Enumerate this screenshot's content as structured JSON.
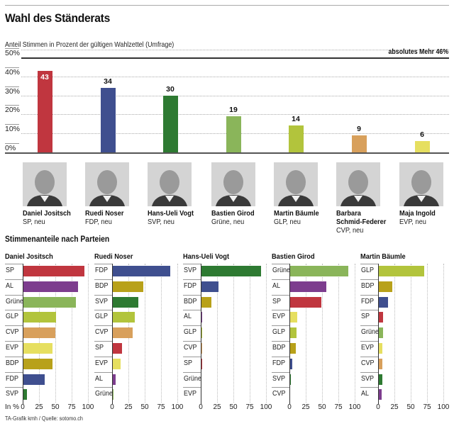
{
  "header": {
    "title": "Wahl des Ständerats",
    "subtitle": "Anteil Stimmen in Prozent der gültigen Wahlzettel (Umfrage)"
  },
  "section_title": "Stimmenanteile nach Parteien",
  "unit_label": "In %",
  "source": "TA-Grafik kmh / Quelle: sotomo.ch",
  "party_colors": {
    "SP": "#c0363f",
    "FDP": "#3f4f8f",
    "SVP": "#2e7a32",
    "Grüne": "#8ab55a",
    "GLP": "#b2c43c",
    "CVP": "#d8a05c",
    "EVP": "#e6df60",
    "BDP": "#b8a11a",
    "AL": "#7d3d8e"
  },
  "candidates": [
    {
      "name": "Daniel Jositsch",
      "party_line": "SP, neu",
      "party": "SP",
      "photo": "portrait-daniel-jositsch"
    },
    {
      "name": "Ruedi Noser",
      "party_line": "FDP, neu",
      "party": "FDP",
      "photo": "portrait-ruedi-noser"
    },
    {
      "name": "Hans-Ueli Vogt",
      "party_line": "SVP, neu",
      "party": "SVP",
      "photo": "portrait-hans-ueli-vogt"
    },
    {
      "name": "Bastien Girod",
      "party_line": "Grüne, neu",
      "party": "Grüne",
      "photo": "portrait-bastien-girod"
    },
    {
      "name": "Martin Bäumle",
      "party_line": "GLP, neu",
      "party": "GLP",
      "photo": "portrait-martin-baeumle"
    },
    {
      "name": "Barbara Schmid-Federer",
      "name_lines": [
        "Barbara",
        "Schmid-Federer"
      ],
      "party_line": "CVP, neu",
      "party": "CVP",
      "photo": "portrait-barbara-schmid-federer"
    },
    {
      "name": "Maja Ingold",
      "party_line": "EVP, neu",
      "party": "EVP",
      "photo": "portrait-maja-ingold"
    }
  ],
  "chart_data": [
    {
      "type": "bar",
      "title": "Wahl des Ständerats",
      "subtitle": "Anteil Stimmen in Prozent der gültigen Wahlzettel (Umfrage)",
      "categories": [
        "Daniel Jositsch",
        "Ruedi Noser",
        "Hans-Ueli Vogt",
        "Bastien Girod",
        "Martin Bäumle",
        "Barbara Schmid-Federer",
        "Maja Ingold"
      ],
      "values": [
        43,
        34,
        30,
        19,
        14,
        9,
        6
      ],
      "data_labels": [
        "43",
        "34",
        "30",
        "19",
        "14",
        "9",
        "6"
      ],
      "colors": [
        "#c0363f",
        "#3f4f8f",
        "#2e7a32",
        "#8ab55a",
        "#b2c43c",
        "#d8a05c",
        "#e6df60"
      ],
      "ylim": [
        0,
        50
      ],
      "yticks": [
        0,
        10,
        20,
        30,
        40,
        50
      ],
      "ytick_labels": [
        "0%",
        "10%",
        "20%",
        "30%",
        "40%",
        "50%"
      ],
      "grid": true,
      "reference_line": {
        "value": 46,
        "label": "absolutes Mehr 46%"
      }
    },
    {
      "type": "bar",
      "orientation": "horizontal",
      "title": "Stimmenanteile nach Parteien",
      "xlabel": "In %",
      "xlim": [
        0,
        100
      ],
      "xticks": [
        0,
        25,
        50,
        75,
        100
      ],
      "grid": true,
      "panels": [
        {
          "title": "Daniel Jositsch",
          "categories": [
            "SP",
            "AL",
            "Grüne",
            "GLP",
            "CVP",
            "EVP",
            "BDP",
            "FDP",
            "SVP"
          ],
          "values": [
            95,
            85,
            82,
            51,
            50,
            46,
            46,
            34,
            7
          ]
        },
        {
          "title": "Ruedi Noser",
          "categories": [
            "FDP",
            "BDP",
            "SVP",
            "GLP",
            "CVP",
            "SP",
            "EVP",
            "AL",
            "Grüne"
          ],
          "values": [
            89,
            48,
            40,
            35,
            31,
            15,
            13,
            5,
            2
          ]
        },
        {
          "title": "Hans-Ueli Vogt",
          "categories": [
            "SVP",
            "FDP",
            "BDP",
            "AL",
            "GLP",
            "CVP",
            "SP",
            "Grüne",
            "EVP"
          ],
          "values": [
            92,
            27,
            16,
            2,
            2,
            1,
            1,
            0,
            0
          ]
        },
        {
          "title": "Bastien Girod",
          "categories": [
            "Grüne",
            "AL",
            "SP",
            "EVP",
            "GLP",
            "BDP",
            "FDP",
            "SVP",
            "CVP"
          ],
          "values": [
            90,
            57,
            49,
            12,
            11,
            10,
            4,
            1,
            0
          ]
        },
        {
          "title": "Martin Bäumle",
          "categories": [
            "GLP",
            "BDP",
            "FDP",
            "SP",
            "Grüne",
            "EVP",
            "CVP",
            "SVP",
            "AL"
          ],
          "values": [
            71,
            22,
            15,
            8,
            8,
            7,
            7,
            6,
            5
          ]
        }
      ]
    }
  ]
}
